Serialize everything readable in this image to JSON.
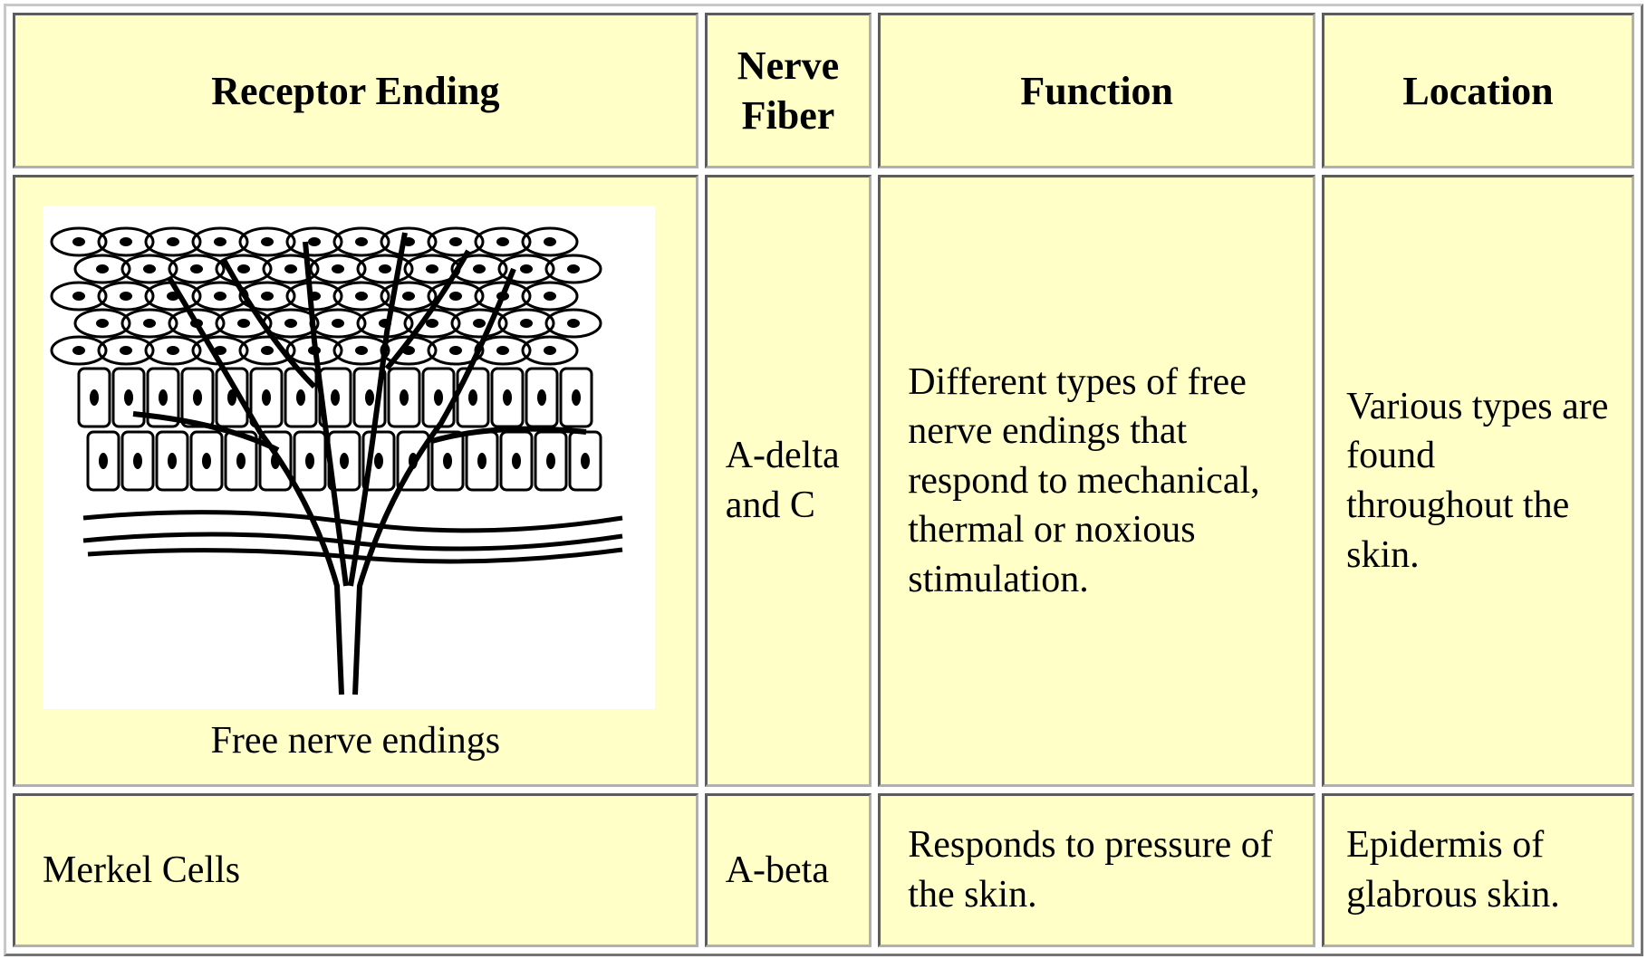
{
  "table": {
    "header": [
      "Receptor Ending",
      "Nerve Fiber",
      "Function",
      "Location"
    ],
    "rows": [
      [
        "Free nerve endings",
        "A-delta and C",
        "Different types of free nerve endings that respond to mechanical, thermal or noxious stimulation.",
        "Various types are found throughout the skin."
      ],
      [
        "Merkel Cells",
        "A-beta",
        "Responds to pressure of the skin.",
        "Epidermis of glabrous skin."
      ]
    ]
  }
}
